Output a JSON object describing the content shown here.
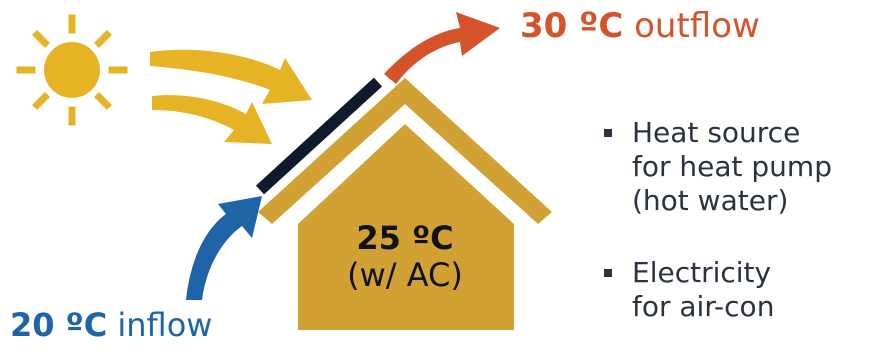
{
  "colors": {
    "sun": "#E6B325",
    "house": "#D1A233",
    "panel": "#0F1B2D",
    "outflow": "#D4532A",
    "inflow": "#1F63A8",
    "text": "#2b3340"
  },
  "outflow": {
    "temp": "30 ºC",
    "label": "outflow"
  },
  "inflow": {
    "temp": "20 ºC",
    "label": "inflow"
  },
  "house": {
    "temp": "25 ºC",
    "sub": "(w/ AC)"
  },
  "bullets": [
    {
      "lines": [
        "Heat source",
        "for heat pump",
        "(hot water)"
      ]
    },
    {
      "lines": [
        "Electricity",
        "for air-con"
      ]
    }
  ],
  "icons": [
    "sun-icon",
    "solar-panel-icon",
    "house-icon",
    "heat-arrow-icon",
    "outflow-arrow-icon",
    "inflow-arrow-icon"
  ]
}
